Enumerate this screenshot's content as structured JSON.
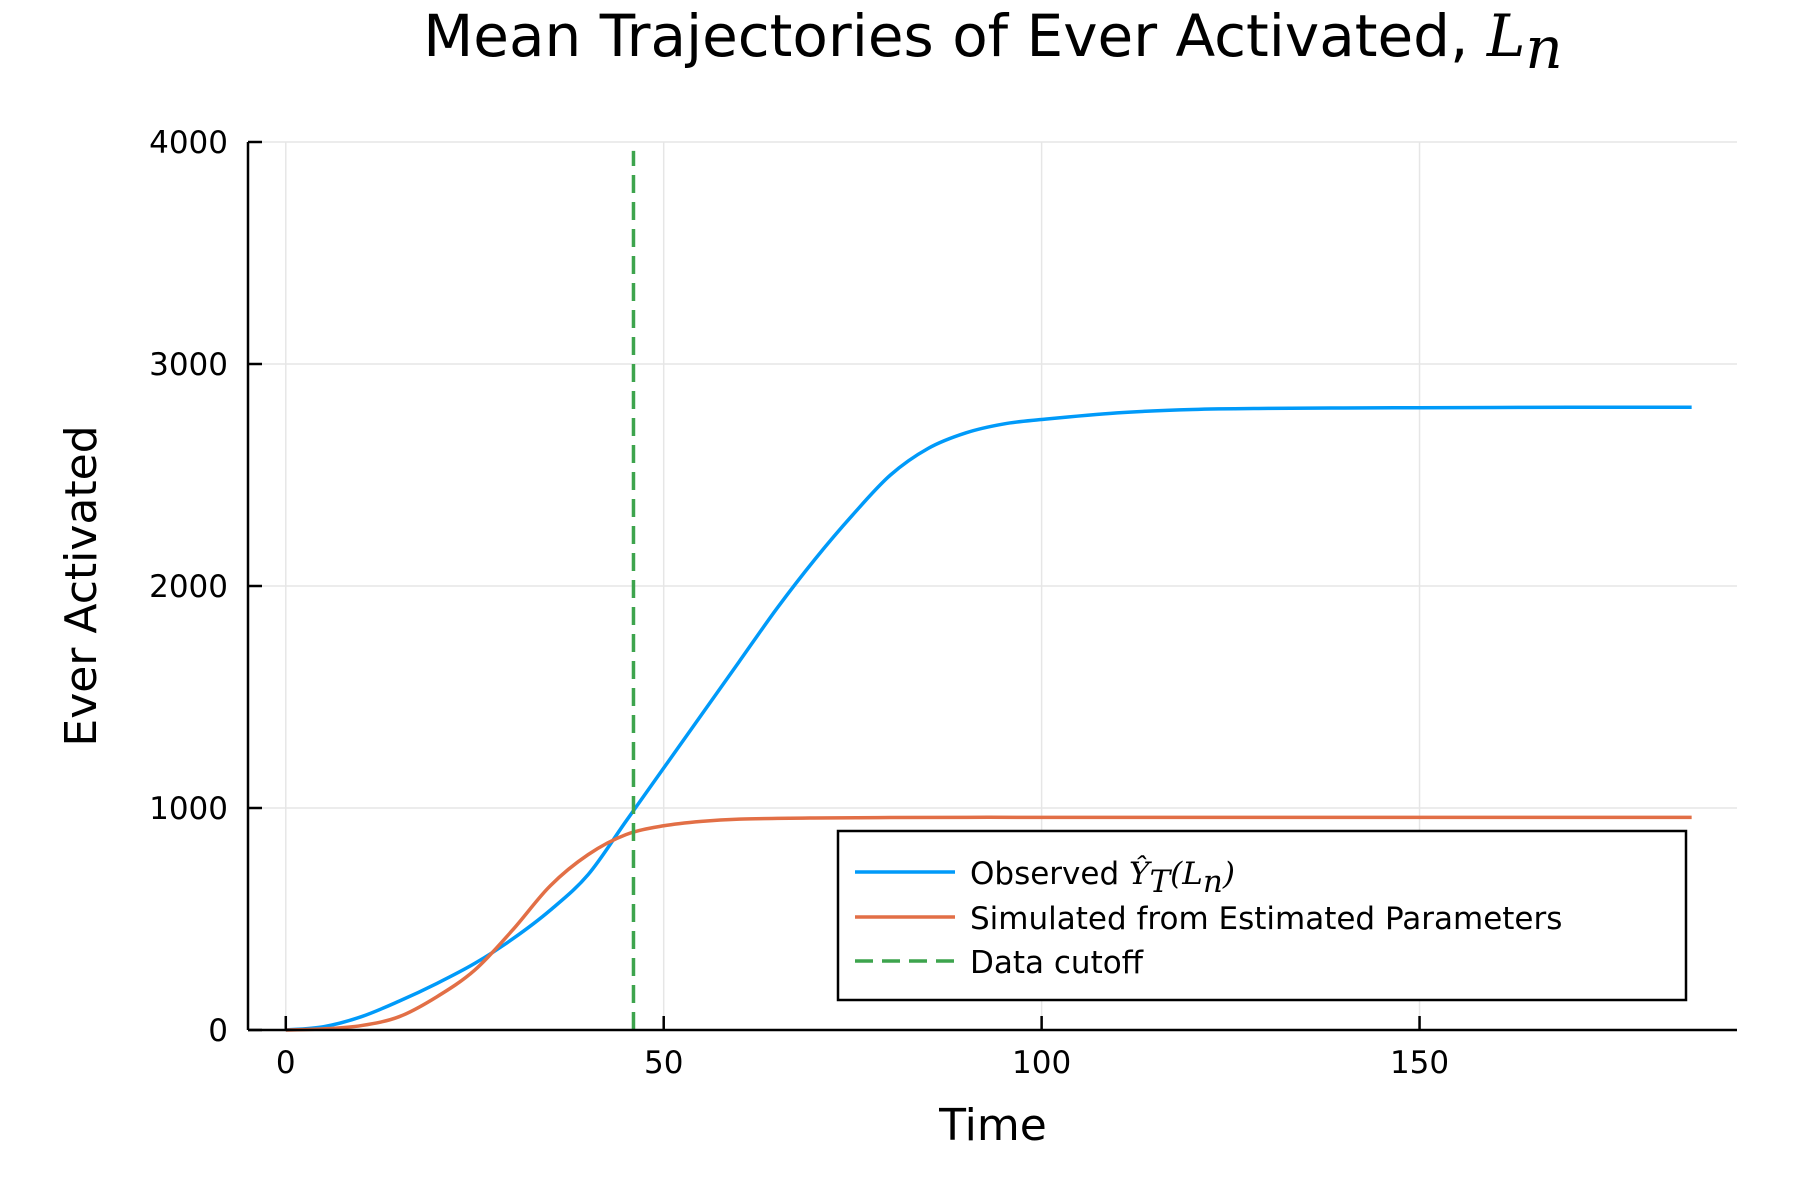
{
  "chart_data": {
    "type": "line",
    "title": "Mean Trajectories of Ever Activated, ",
    "title_math": "L",
    "title_math_sub": "n",
    "xlabel": "Time",
    "ylabel": "Ever Activated",
    "xlim": [
      -5,
      192
    ],
    "ylim": [
      0,
      4000
    ],
    "x_ticks": [
      0,
      50,
      100,
      150
    ],
    "y_ticks": [
      0,
      1000,
      2000,
      3000,
      4000
    ],
    "grid": true,
    "legend_position": "bottom-right",
    "series": [
      {
        "name": "Observed ",
        "name_math": "Ŷ",
        "name_math_sub": "T",
        "name_math_tail": "(L",
        "name_math_tail_sub": "n",
        "name_math_close": ")",
        "color": "#009af9",
        "style": "solid",
        "x": [
          0,
          5,
          10,
          15,
          20,
          25,
          30,
          35,
          40,
          45,
          50,
          55,
          60,
          65,
          70,
          75,
          80,
          85,
          90,
          95,
          100,
          110,
          120,
          130,
          140,
          150,
          160,
          170,
          186
        ],
        "y": [
          0,
          15,
          60,
          130,
          210,
          300,
          410,
          540,
          700,
          940,
          1180,
          1420,
          1660,
          1900,
          2120,
          2320,
          2500,
          2620,
          2690,
          2730,
          2750,
          2780,
          2795,
          2800,
          2802,
          2803,
          2804,
          2805,
          2805
        ]
      },
      {
        "name": "Simulated from Estimated Parameters",
        "color": "#e26f46",
        "style": "solid",
        "x": [
          0,
          5,
          10,
          15,
          20,
          25,
          30,
          35,
          40,
          45,
          50,
          55,
          60,
          70,
          80,
          90,
          100,
          120,
          150,
          186
        ],
        "y": [
          0,
          5,
          20,
          60,
          150,
          270,
          450,
          650,
          790,
          880,
          920,
          940,
          950,
          955,
          957,
          958,
          958,
          958,
          958,
          958
        ]
      },
      {
        "name": "Data cutoff",
        "color": "#3da44d",
        "style": "dashed",
        "x": [
          46,
          46
        ],
        "y": [
          0,
          3960
        ]
      }
    ]
  }
}
